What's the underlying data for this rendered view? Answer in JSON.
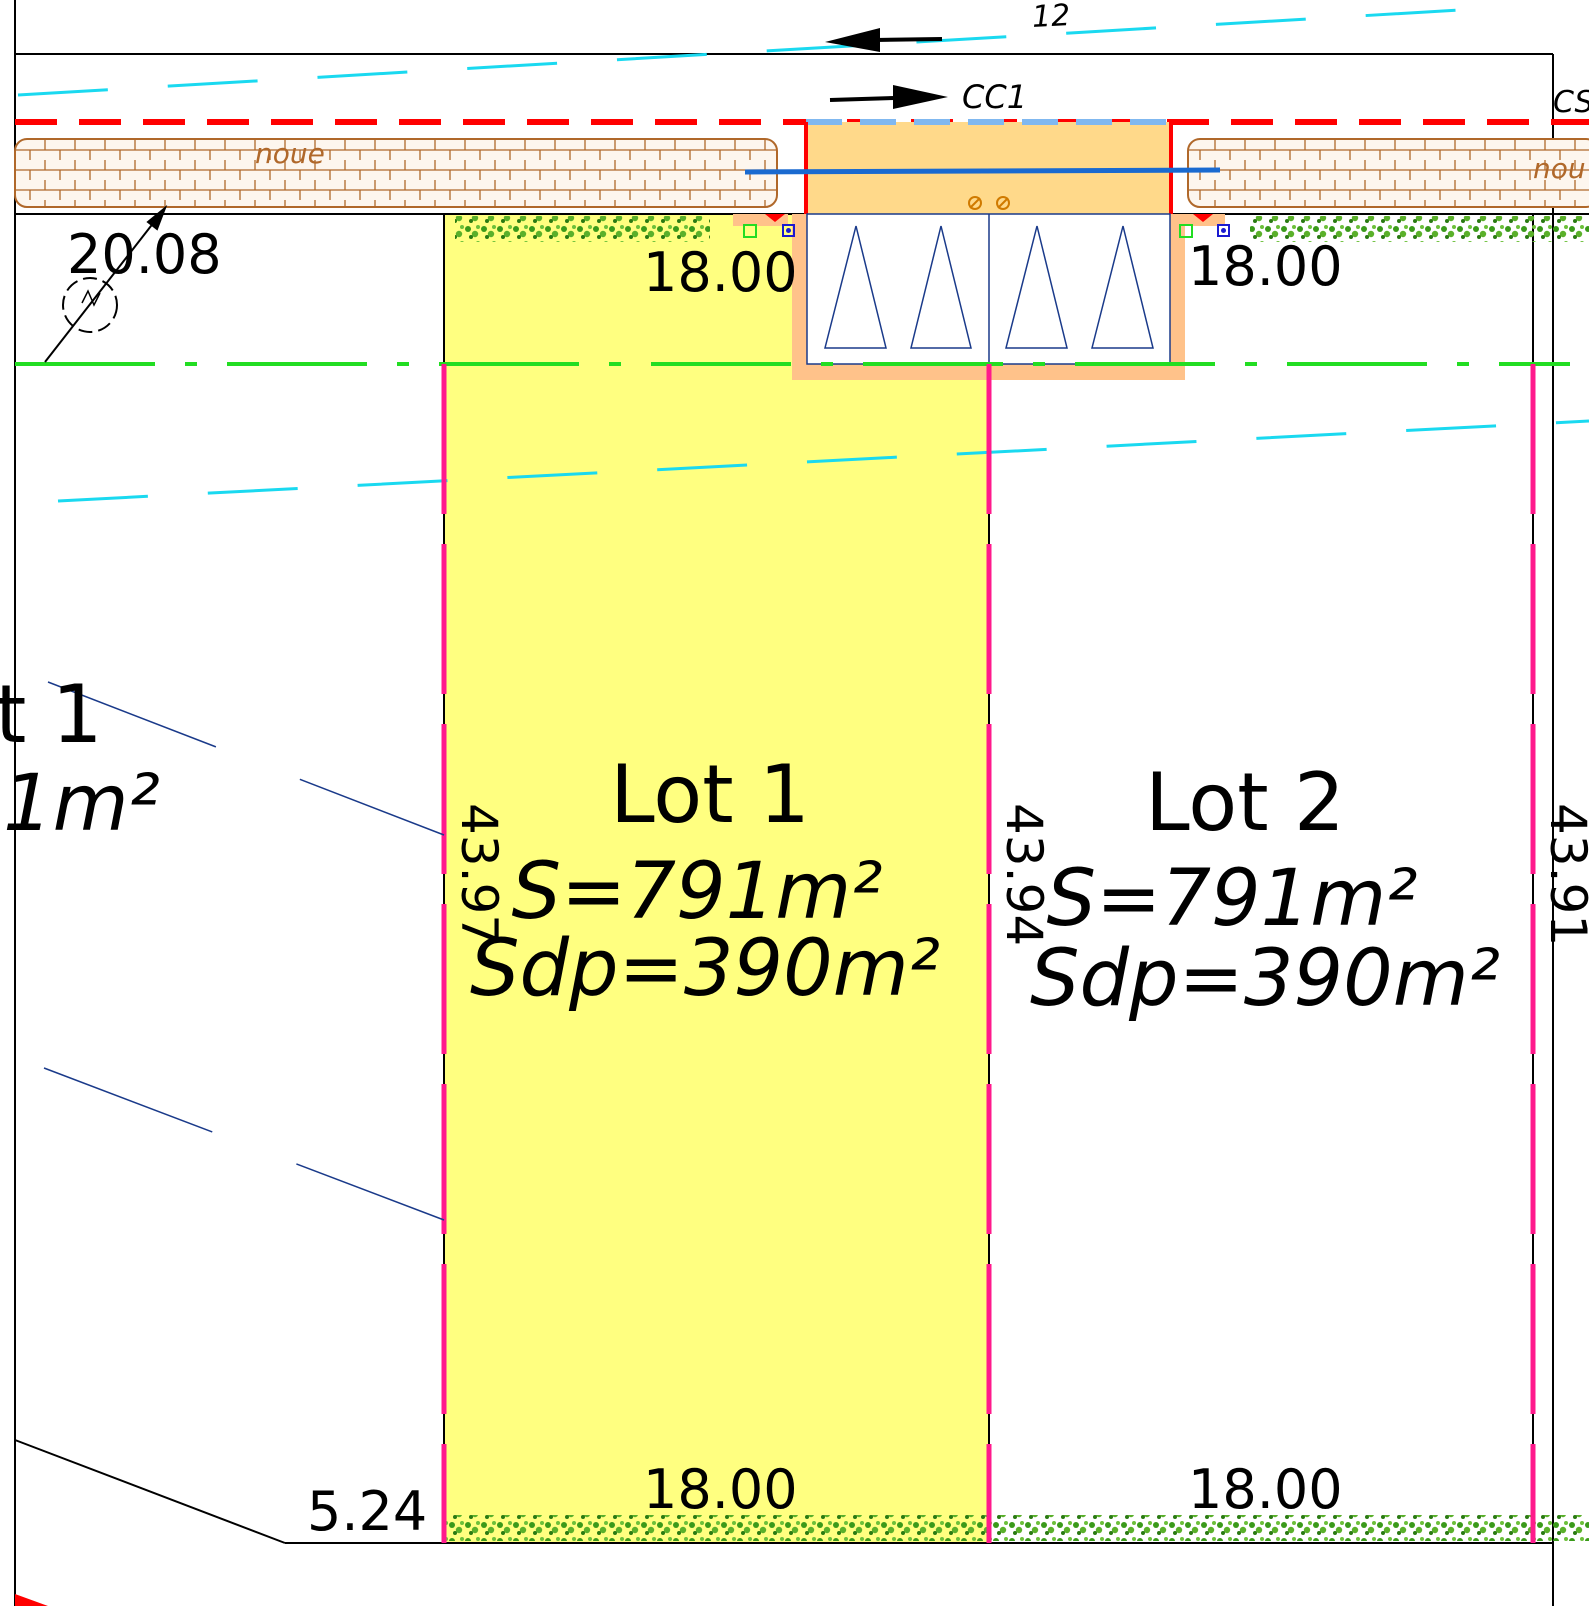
{
  "road": {
    "label_top": "12",
    "label_cc1": "CC1",
    "label_cs": "CS"
  },
  "noue": {
    "label_left": "noue",
    "label_right": "nou"
  },
  "dimensions": {
    "top_left": "20.08",
    "lot1_top": "18.00",
    "lot2_top": "18.00",
    "lot1_bottom": "18.00",
    "lot2_bottom": "18.00",
    "bottom_left": "5.24",
    "side_lot1": "43.97",
    "side_lot2": "43.94",
    "side_right": "43.91"
  },
  "lots": [
    {
      "name": "Lot 1",
      "surface": "S=791m²",
      "sdp": "Sdp=390m²"
    },
    {
      "name": "Lot 2",
      "surface": "S=791m²",
      "sdp": "Sdp=390m²"
    }
  ],
  "partial_lot": {
    "name": "t 1",
    "surface": "1m²"
  },
  "colors": {
    "lot1_fill": "#ffff80",
    "boundary_pink": "#ff1a8c",
    "setback_green": "#22dd22",
    "contour_cyan": "#1ad9f0",
    "road_red": "#ff0000",
    "noue_brown": "#b0682a",
    "parking_orange": "#ffc28a",
    "hedge_green": "#3a9a1a",
    "dark_blue": "#1a3a8a"
  }
}
